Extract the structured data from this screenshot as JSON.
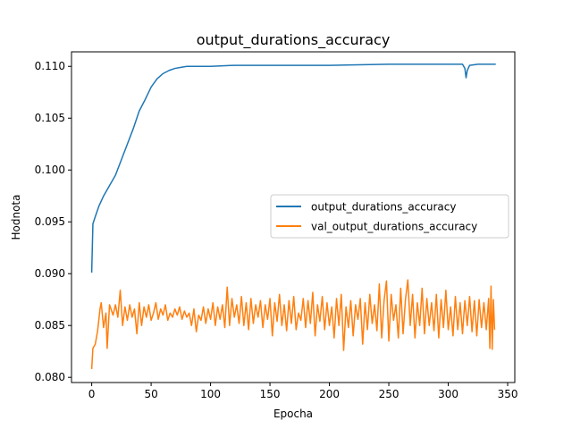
{
  "chart_data": {
    "type": "line",
    "title": "output_durations_accuracy",
    "xlabel": "Epocha",
    "ylabel": "Hodnota",
    "xlim": [
      -17,
      356
    ],
    "ylim": [
      0.0795,
      0.1114
    ],
    "xticks": [
      0,
      50,
      100,
      150,
      200,
      250,
      300,
      350
    ],
    "xtick_labels": [
      "0",
      "50",
      "100",
      "150",
      "200",
      "250",
      "300",
      "350"
    ],
    "yticks": [
      0.08,
      0.085,
      0.09,
      0.095,
      0.1,
      0.105,
      0.11
    ],
    "ytick_labels": [
      "0.080",
      "0.085",
      "0.090",
      "0.095",
      "0.100",
      "0.105",
      "0.110"
    ],
    "grid": false,
    "legend_position": "center-right",
    "colors": {
      "series1": "#1f77b4",
      "series2": "#ff7f0e"
    },
    "series": [
      {
        "name": "output_durations_accuracy",
        "color": "#1f77b4",
        "points": [
          [
            0,
            0.0901
          ],
          [
            1,
            0.0948
          ],
          [
            3,
            0.0955
          ],
          [
            6,
            0.0965
          ],
          [
            10,
            0.0975
          ],
          [
            15,
            0.0985
          ],
          [
            20,
            0.0995
          ],
          [
            25,
            0.101
          ],
          [
            30,
            0.1025
          ],
          [
            35,
            0.104
          ],
          [
            40,
            0.1057
          ],
          [
            45,
            0.1068
          ],
          [
            50,
            0.108
          ],
          [
            55,
            0.1088
          ],
          [
            60,
            0.1093
          ],
          [
            65,
            0.1096
          ],
          [
            70,
            0.1098
          ],
          [
            75,
            0.1099
          ],
          [
            80,
            0.11
          ],
          [
            90,
            0.11
          ],
          [
            100,
            0.11
          ],
          [
            120,
            0.1101
          ],
          [
            150,
            0.1101
          ],
          [
            200,
            0.1101
          ],
          [
            250,
            0.1102
          ],
          [
            300,
            0.1102
          ],
          [
            312,
            0.1102
          ],
          [
            314,
            0.1098
          ],
          [
            315,
            0.1089
          ],
          [
            316,
            0.1096
          ],
          [
            318,
            0.1101
          ],
          [
            325,
            0.1102
          ],
          [
            340,
            0.1102
          ]
        ]
      },
      {
        "name": "val_output_durations_accuracy",
        "color": "#ff7f0e",
        "points": [
          [
            0,
            0.0808
          ],
          [
            1,
            0.0828
          ],
          [
            3,
            0.0832
          ],
          [
            5,
            0.0845
          ],
          [
            7,
            0.0866
          ],
          [
            8,
            0.0872
          ],
          [
            10,
            0.0848
          ],
          [
            12,
            0.0862
          ],
          [
            13,
            0.0828
          ],
          [
            15,
            0.087
          ],
          [
            18,
            0.086
          ],
          [
            20,
            0.087
          ],
          [
            22,
            0.0858
          ],
          [
            24,
            0.0884
          ],
          [
            26,
            0.085
          ],
          [
            28,
            0.0868
          ],
          [
            30,
            0.0855
          ],
          [
            32,
            0.087
          ],
          [
            34,
            0.0858
          ],
          [
            36,
            0.0866
          ],
          [
            38,
            0.0842
          ],
          [
            40,
            0.0872
          ],
          [
            42,
            0.085
          ],
          [
            44,
            0.0868
          ],
          [
            46,
            0.0858
          ],
          [
            48,
            0.087
          ],
          [
            50,
            0.0855
          ],
          [
            52,
            0.0862
          ],
          [
            54,
            0.0872
          ],
          [
            56,
            0.0856
          ],
          [
            58,
            0.0866
          ],
          [
            60,
            0.086
          ],
          [
            62,
            0.087
          ],
          [
            64,
            0.0855
          ],
          [
            66,
            0.0862
          ],
          [
            68,
            0.0858
          ],
          [
            70,
            0.0866
          ],
          [
            72,
            0.086
          ],
          [
            74,
            0.0868
          ],
          [
            76,
            0.0856
          ],
          [
            78,
            0.0864
          ],
          [
            80,
            0.0858
          ],
          [
            82,
            0.0862
          ],
          [
            84,
            0.085
          ],
          [
            86,
            0.0866
          ],
          [
            88,
            0.0844
          ],
          [
            90,
            0.086
          ],
          [
            92,
            0.0855
          ],
          [
            94,
            0.0868
          ],
          [
            96,
            0.0852
          ],
          [
            98,
            0.0866
          ],
          [
            100,
            0.0856
          ],
          [
            102,
            0.0872
          ],
          [
            104,
            0.085
          ],
          [
            106,
            0.0868
          ],
          [
            108,
            0.0856
          ],
          [
            110,
            0.087
          ],
          [
            112,
            0.0848
          ],
          [
            114,
            0.0887
          ],
          [
            116,
            0.085
          ],
          [
            118,
            0.0876
          ],
          [
            120,
            0.0858
          ],
          [
            122,
            0.087
          ],
          [
            124,
            0.0852
          ],
          [
            126,
            0.0878
          ],
          [
            128,
            0.085
          ],
          [
            130,
            0.0872
          ],
          [
            132,
            0.0846
          ],
          [
            134,
            0.0876
          ],
          [
            136,
            0.0852
          ],
          [
            138,
            0.087
          ],
          [
            140,
            0.0858
          ],
          [
            142,
            0.0874
          ],
          [
            144,
            0.0848
          ],
          [
            146,
            0.087
          ],
          [
            148,
            0.0856
          ],
          [
            150,
            0.0876
          ],
          [
            152,
            0.084
          ],
          [
            154,
            0.0872
          ],
          [
            156,
            0.0854
          ],
          [
            158,
            0.088
          ],
          [
            160,
            0.085
          ],
          [
            162,
            0.087
          ],
          [
            164,
            0.0845
          ],
          [
            166,
            0.0874
          ],
          [
            168,
            0.0852
          ],
          [
            170,
            0.0878
          ],
          [
            172,
            0.0846
          ],
          [
            174,
            0.0862
          ],
          [
            176,
            0.0855
          ],
          [
            178,
            0.0876
          ],
          [
            180,
            0.0848
          ],
          [
            182,
            0.0874
          ],
          [
            184,
            0.0852
          ],
          [
            186,
            0.0882
          ],
          [
            188,
            0.084
          ],
          [
            190,
            0.087
          ],
          [
            192,
            0.0854
          ],
          [
            194,
            0.0878
          ],
          [
            196,
            0.0846
          ],
          [
            198,
            0.0872
          ],
          [
            200,
            0.085
          ],
          [
            202,
            0.0868
          ],
          [
            204,
            0.0838
          ],
          [
            206,
            0.0876
          ],
          [
            208,
            0.085
          ],
          [
            210,
            0.088
          ],
          [
            212,
            0.0826
          ],
          [
            214,
            0.0868
          ],
          [
            216,
            0.0848
          ],
          [
            218,
            0.0874
          ],
          [
            220,
            0.084
          ],
          [
            222,
            0.087
          ],
          [
            224,
            0.0856
          ],
          [
            226,
            0.0876
          ],
          [
            228,
            0.0832
          ],
          [
            230,
            0.0872
          ],
          [
            232,
            0.0846
          ],
          [
            234,
            0.088
          ],
          [
            236,
            0.0852
          ],
          [
            238,
            0.087
          ],
          [
            240,
            0.0845
          ],
          [
            242,
            0.089
          ],
          [
            244,
            0.0838
          ],
          [
            246,
            0.0874
          ],
          [
            248,
            0.0893
          ],
          [
            250,
            0.0835
          ],
          [
            252,
            0.088
          ],
          [
            254,
            0.0855
          ],
          [
            256,
            0.087
          ],
          [
            258,
            0.0838
          ],
          [
            260,
            0.0886
          ],
          [
            262,
            0.0842
          ],
          [
            264,
            0.0875
          ],
          [
            266,
            0.0894
          ],
          [
            268,
            0.085
          ],
          [
            270,
            0.088
          ],
          [
            272,
            0.0838
          ],
          [
            274,
            0.0872
          ],
          [
            276,
            0.085
          ],
          [
            278,
            0.0886
          ],
          [
            280,
            0.0842
          ],
          [
            282,
            0.0876
          ],
          [
            284,
            0.085
          ],
          [
            286,
            0.0872
          ],
          [
            288,
            0.0845
          ],
          [
            290,
            0.088
          ],
          [
            292,
            0.0838
          ],
          [
            294,
            0.0875
          ],
          [
            296,
            0.0848
          ],
          [
            298,
            0.0884
          ],
          [
            300,
            0.0846
          ],
          [
            302,
            0.0868
          ],
          [
            304,
            0.084
          ],
          [
            306,
            0.0878
          ],
          [
            308,
            0.0846
          ],
          [
            310,
            0.0872
          ],
          [
            312,
            0.0842
          ],
          [
            314,
            0.0874
          ],
          [
            316,
            0.085
          ],
          [
            318,
            0.0878
          ],
          [
            320,
            0.0844
          ],
          [
            322,
            0.0874
          ],
          [
            324,
            0.084
          ],
          [
            326,
            0.0875
          ],
          [
            328,
            0.0848
          ],
          [
            330,
            0.0872
          ],
          [
            332,
            0.0846
          ],
          [
            334,
            0.0876
          ],
          [
            335,
            0.0828
          ],
          [
            336,
            0.0888
          ],
          [
            337,
            0.0827
          ],
          [
            338,
            0.0875
          ],
          [
            339,
            0.0846
          ]
        ]
      }
    ]
  }
}
